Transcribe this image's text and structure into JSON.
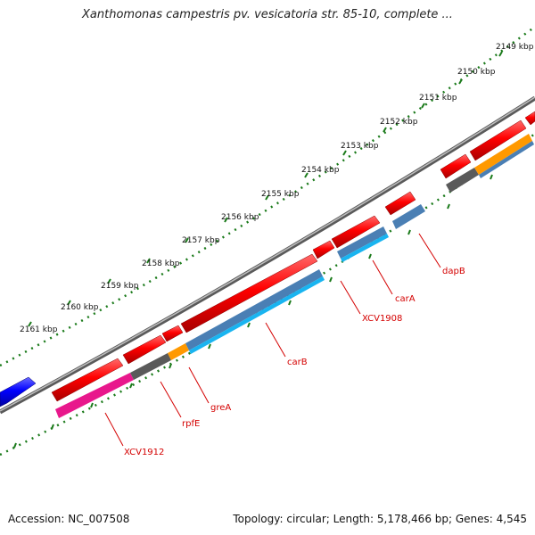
{
  "title": "Xanthomonas campestris pv. vesicatoria str. 85-10, complete ...",
  "accession": "Accession: NC_007508",
  "summary": "Topology: circular; Length: 5,178,466 bp; Genes: 4,545",
  "ticks": [
    "2149 kbp",
    "2150 kbp",
    "2151 kbp",
    "2152 kbp",
    "2153 kbp",
    "2154 kbp",
    "2155 kbp",
    "2156 kbp",
    "2157 kbp",
    "2158 kbp",
    "2159 kbp",
    "2160 kbp",
    "2161 kbp"
  ],
  "genes": [
    "XCV1912",
    "rpfE",
    "greA",
    "carB",
    "XCV1908",
    "carA",
    "dapB"
  ],
  "colors": {
    "gene_red": "#ff0000",
    "gene_blue": "#0000ff",
    "cds_pink": "#e8188c",
    "cds_grey": "#5a5a5a",
    "cds_orange": "#ff9900",
    "cds_steelblue": "#4a7fb4",
    "cds_cyan": "#19b4f0",
    "backbone": "#8c8c8c",
    "tick_green": "#1a7a1a",
    "label_red": "#d40000"
  }
}
